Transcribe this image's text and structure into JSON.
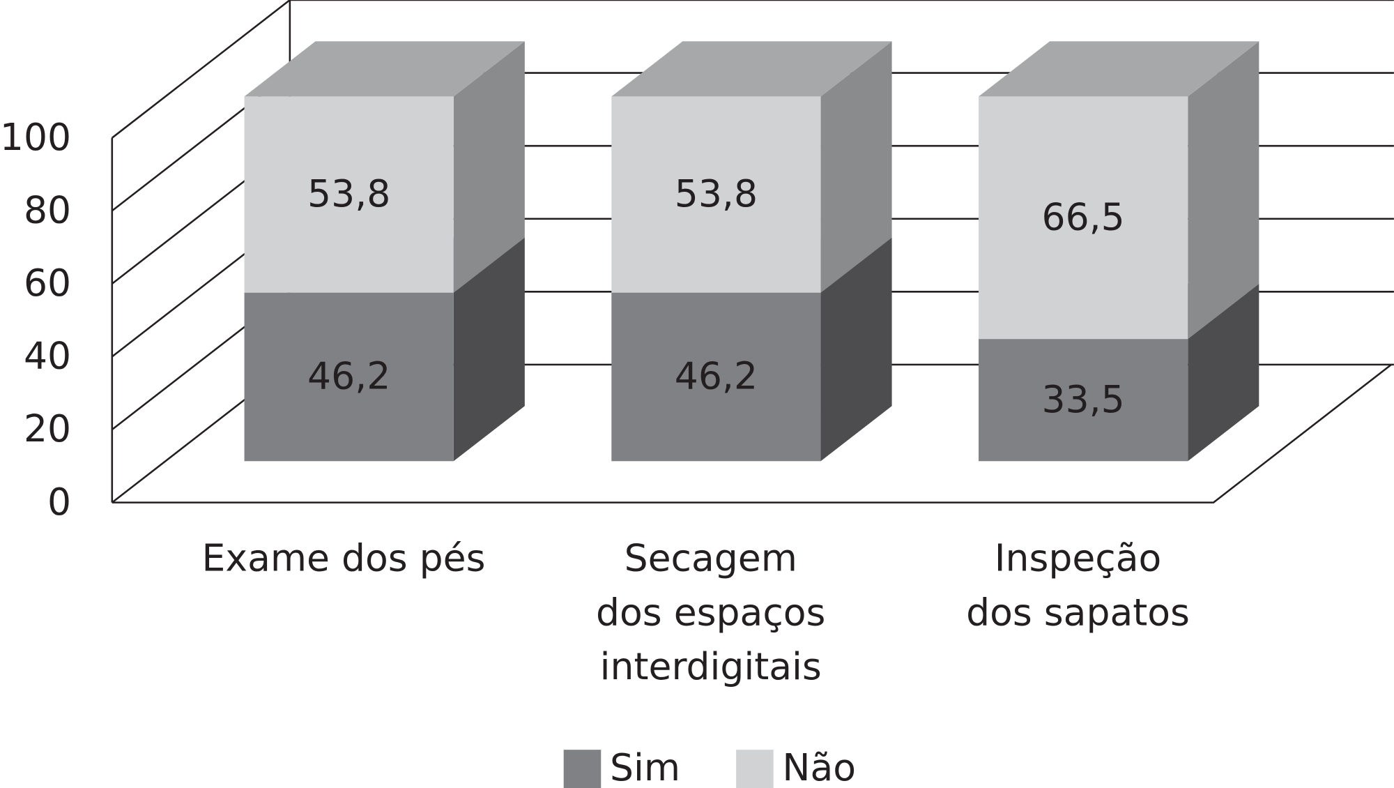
{
  "chart_data": {
    "type": "bar3d_stacked",
    "categories": [
      "Exame dos pés",
      "Secagem\ndos espaços\ninterdigitais",
      "Inspeção\ndos sapatos"
    ],
    "series": [
      {
        "name": "Sim",
        "color": "#808184",
        "values": [
          46.2,
          46.2,
          33.5
        ],
        "value_labels": [
          "46,2",
          "46,2",
          "33,5"
        ]
      },
      {
        "name": "Não",
        "color": "#d1d2d4",
        "values": [
          53.8,
          53.8,
          66.5
        ],
        "value_labels": [
          "53,8",
          "53,8",
          "66,5"
        ]
      }
    ],
    "ylim": [
      0,
      100
    ],
    "yticks": [
      0,
      20,
      40,
      60,
      80,
      100
    ],
    "grid": true,
    "legend": "bottom"
  }
}
